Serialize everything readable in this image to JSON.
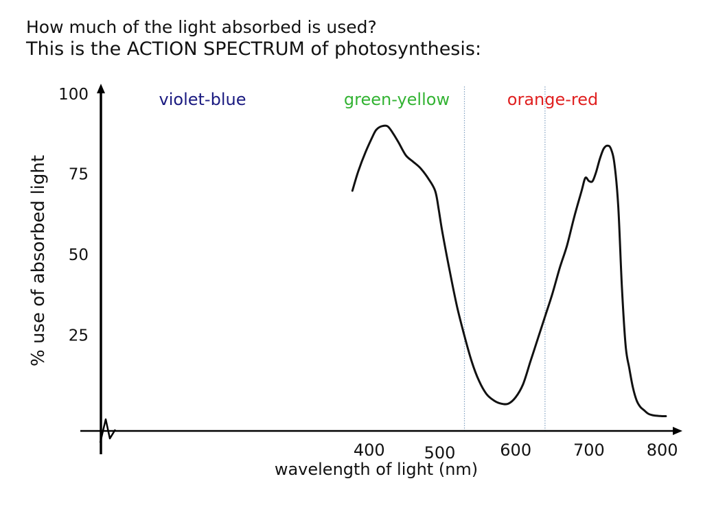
{
  "heading": {
    "question": "How much of the light absorbed is used?",
    "statement": "This is the ACTION SPECTRUM of photosynthesis:"
  },
  "chart_data": {
    "type": "line",
    "title": "",
    "xlabel": "wavelength of light (nm)",
    "ylabel": "% use of absorbed light",
    "xlim": [
      370,
      815
    ],
    "ylim": [
      0,
      100
    ],
    "x_axis_break": true,
    "grid": false,
    "xticks": [
      400,
      500,
      600,
      700,
      800
    ],
    "xtick_labels": [
      "400",
      "500",
      "600",
      "700",
      "800"
    ],
    "yticks": [
      25,
      50,
      75,
      100
    ],
    "ytick_labels": [
      "25",
      "50",
      "75",
      "100"
    ],
    "regions": [
      {
        "label": "violet-blue",
        "color": "#1a1a80"
      },
      {
        "label": "green-yellow",
        "color": "#33b333"
      },
      {
        "label": "orange-red",
        "color": "#e02020"
      }
    ],
    "region_boundaries": [
      530,
      640
    ],
    "boundary_color": "#7f9fbf",
    "series": [
      {
        "color": "#111111",
        "x": [
          377,
          385,
          395,
          405,
          410,
          417,
          425,
          432,
          440,
          450,
          460,
          470,
          480,
          490,
          495,
          500,
          510,
          520,
          530,
          540,
          550,
          560,
          570,
          580,
          590,
          600,
          610,
          620,
          630,
          640,
          650,
          660,
          670,
          680,
          690,
          695,
          700,
          705,
          710,
          715,
          720,
          725,
          730,
          735,
          740,
          745,
          750,
          755,
          760,
          765,
          770,
          775,
          780,
          785,
          790,
          795,
          800,
          805
        ],
        "y": [
          70,
          76,
          82,
          87,
          89,
          90,
          90,
          88,
          85,
          81,
          79,
          77,
          74,
          70,
          64,
          57,
          45,
          34,
          25,
          17,
          11,
          7,
          5,
          4,
          4,
          6,
          10,
          17,
          24,
          31,
          38,
          46,
          53,
          62,
          70,
          74,
          73,
          73,
          76,
          80,
          83,
          84,
          83,
          78,
          65,
          40,
          22,
          15,
          9,
          5,
          3,
          2,
          1,
          0.5,
          0.3,
          0.2,
          0.1,
          0.1
        ]
      }
    ]
  }
}
